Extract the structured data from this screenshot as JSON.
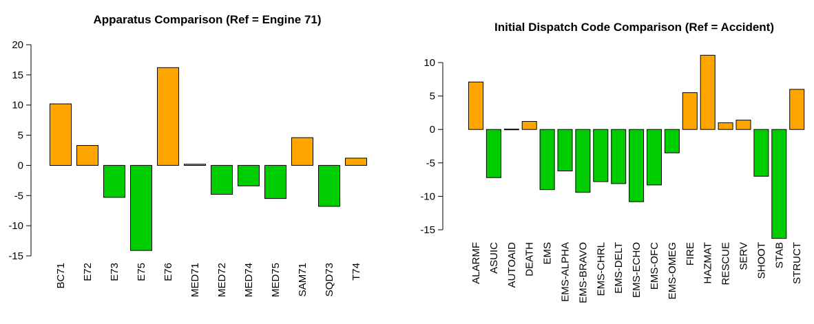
{
  "chart_data": [
    {
      "type": "bar",
      "title": "Apparatus Comparison (Ref = Engine 71)",
      "categories": [
        "BC71",
        "E72",
        "E73",
        "E75",
        "E76",
        "MED71",
        "MED72",
        "MED74",
        "MED75",
        "SAM71",
        "SQD73",
        "T74"
      ],
      "values": [
        10.2,
        3.3,
        -5.3,
        -14.1,
        16.2,
        0.2,
        -4.8,
        -3.4,
        -5.5,
        4.6,
        -6.8,
        1.2
      ],
      "ylim": [
        -15,
        20
      ],
      "yticks": [
        -15,
        -10,
        -5,
        0,
        5,
        10,
        15,
        20
      ],
      "xlabel": "",
      "ylabel": "",
      "grid": false,
      "colors": {
        "positive": "#FFA500",
        "negative": "#00CD00"
      }
    },
    {
      "type": "bar",
      "title": "Initial Dispatch Code Comparison (Ref = Accident)",
      "categories": [
        "ALARMF",
        "ASUIC",
        "AUTOAID",
        "DEATH",
        "EMS",
        "EMS-ALPHA",
        "EMS-BRAVO",
        "EMS-CHRL",
        "EMS-DELT",
        "EMS-ECHO",
        "EMS-OFC",
        "EMS-OMEG",
        "FIRE",
        "HAZMAT",
        "RESCUE",
        "SERV",
        "SHOOT",
        "STAB",
        "STRUCT"
      ],
      "values": [
        7.1,
        -7.2,
        0.05,
        1.2,
        -9.0,
        -6.2,
        -9.4,
        -7.8,
        -8.1,
        -10.8,
        -8.3,
        -3.5,
        5.5,
        11.1,
        1.0,
        1.4,
        -7.0,
        -16.3,
        6.0
      ],
      "ylim": [
        -15,
        10
      ],
      "yticks": [
        -15,
        -10,
        -5,
        0,
        5,
        10
      ],
      "xlabel": "",
      "ylabel": "",
      "grid": false,
      "colors": {
        "positive": "#FFA500",
        "negative": "#00CD00"
      }
    }
  ]
}
